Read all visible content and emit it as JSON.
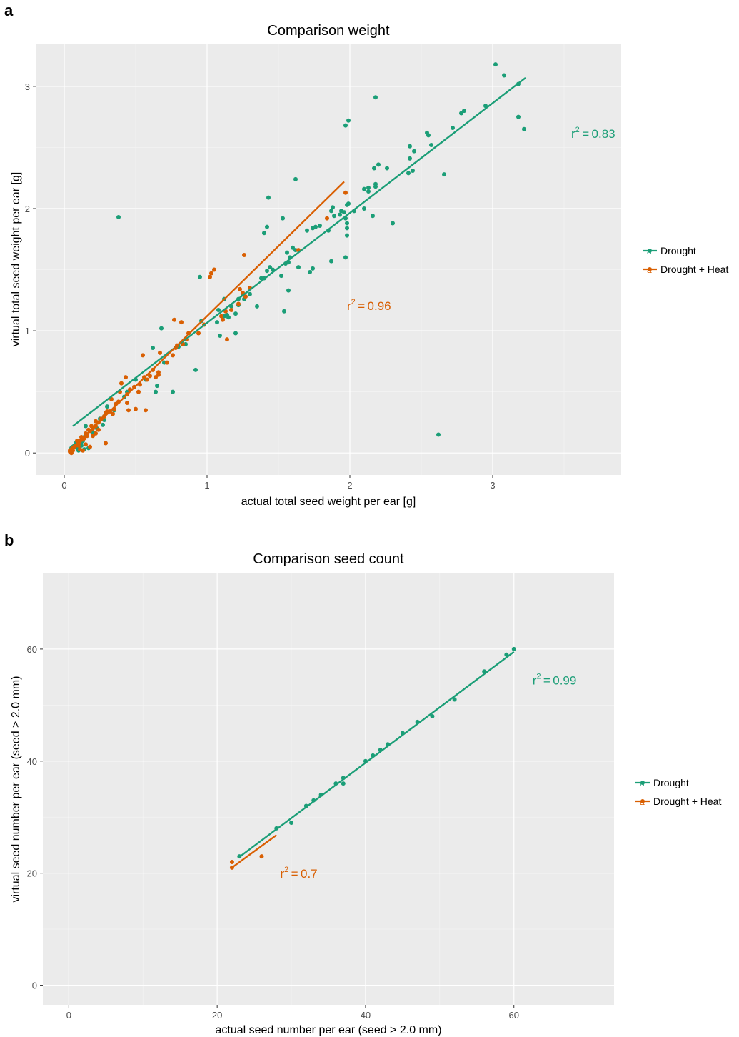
{
  "panels": [
    {
      "label": "a"
    },
    {
      "label": "b"
    }
  ],
  "chart_data": [
    {
      "type": "scatter",
      "title": "Comparison weight",
      "xlabel": "actual total seed weight per ear [g]",
      "ylabel": "virtual total seed weight per ear [g]",
      "xlim": [
        -0.2,
        3.9
      ],
      "ylim": [
        -0.18,
        3.35
      ],
      "x_ticks": [
        0,
        1,
        2,
        3
      ],
      "y_ticks": [
        0,
        1,
        2,
        3
      ],
      "x_tick_labels": [
        "0",
        "1",
        "2",
        "3"
      ],
      "y_tick_labels": [
        "0",
        "1",
        "2",
        "3"
      ],
      "grid": true,
      "legend_position": "right",
      "series": [
        {
          "name": "Drought",
          "color": "#1b9e77",
          "points": [
            [
              0.38,
              1.93
            ],
            [
              2.62,
              0.15
            ],
            [
              3.02,
              3.18
            ],
            [
              3.08,
              3.09
            ],
            [
              3.18,
              3.02
            ],
            [
              3.18,
              2.75
            ],
            [
              3.22,
              2.65
            ],
            [
              2.95,
              2.84
            ],
            [
              2.8,
              2.8
            ],
            [
              2.78,
              2.78
            ],
            [
              2.72,
              2.66
            ],
            [
              2.66,
              2.28
            ],
            [
              2.57,
              2.52
            ],
            [
              2.55,
              2.6
            ],
            [
              2.54,
              2.62
            ],
            [
              2.45,
              2.47
            ],
            [
              2.44,
              2.31
            ],
            [
              2.42,
              2.51
            ],
            [
              2.42,
              2.41
            ],
            [
              2.41,
              2.29
            ],
            [
              2.26,
              2.33
            ],
            [
              2.2,
              2.36
            ],
            [
              2.18,
              2.91
            ],
            [
              2.17,
              2.33
            ],
            [
              2.18,
              2.2
            ],
            [
              2.18,
              2.18
            ],
            [
              2.13,
              2.17
            ],
            [
              2.13,
              2.14
            ],
            [
              2.1,
              2.16
            ],
            [
              2.1,
              2.0
            ],
            [
              2.16,
              1.94
            ],
            [
              2.3,
              1.88
            ],
            [
              1.99,
              2.72
            ],
            [
              1.97,
              2.68
            ],
            [
              1.98,
              2.03
            ],
            [
              1.99,
              2.04
            ],
            [
              2.03,
              1.98
            ],
            [
              1.93,
              1.95
            ],
            [
              1.94,
              1.98
            ],
            [
              1.96,
              1.97
            ],
            [
              1.97,
              1.92
            ],
            [
              1.98,
              1.88
            ],
            [
              1.98,
              1.84
            ],
            [
              1.98,
              1.78
            ],
            [
              1.97,
              1.6
            ],
            [
              1.89,
              1.94
            ],
            [
              1.88,
              2.01
            ],
            [
              1.87,
              1.98
            ],
            [
              1.85,
              1.82
            ],
            [
              1.87,
              1.57
            ],
            [
              1.74,
              1.84
            ],
            [
              1.76,
              1.85
            ],
            [
              1.79,
              1.86
            ],
            [
              1.7,
              1.82
            ],
            [
              1.72,
              1.48
            ],
            [
              1.74,
              1.51
            ],
            [
              1.64,
              1.52
            ],
            [
              1.62,
              1.66
            ],
            [
              1.62,
              2.24
            ],
            [
              1.6,
              1.68
            ],
            [
              1.56,
              1.64
            ],
            [
              1.58,
              1.6
            ],
            [
              1.55,
              1.55
            ],
            [
              1.53,
              1.92
            ],
            [
              1.52,
              1.45
            ],
            [
              1.57,
              1.56
            ],
            [
              1.57,
              1.33
            ],
            [
              1.54,
              1.16
            ],
            [
              1.43,
              2.09
            ],
            [
              1.42,
              1.85
            ],
            [
              1.4,
              1.8
            ],
            [
              1.46,
              1.5
            ],
            [
              1.42,
              1.49
            ],
            [
              1.44,
              1.52
            ],
            [
              1.4,
              1.43
            ],
            [
              1.38,
              1.43
            ],
            [
              1.35,
              1.2
            ],
            [
              1.3,
              1.3
            ],
            [
              1.25,
              1.3
            ],
            [
              1.26,
              1.26
            ],
            [
              1.22,
              1.26
            ],
            [
              1.22,
              1.21
            ],
            [
              1.2,
              1.14
            ],
            [
              1.17,
              1.2
            ],
            [
              1.12,
              1.26
            ],
            [
              1.08,
              1.17
            ],
            [
              1.12,
              1.12
            ],
            [
              1.14,
              1.13
            ],
            [
              1.15,
              1.11
            ],
            [
              1.07,
              1.07
            ],
            [
              1.09,
              0.96
            ],
            [
              1.2,
              0.98
            ],
            [
              0.95,
              1.44
            ],
            [
              0.96,
              1.08
            ],
            [
              0.92,
              0.68
            ],
            [
              0.85,
              0.89
            ],
            [
              0.8,
              0.87
            ],
            [
              0.76,
              0.5
            ],
            [
              0.68,
              1.02
            ],
            [
              0.7,
              0.74
            ],
            [
              0.62,
              0.86
            ],
            [
              0.65,
              0.55
            ],
            [
              0.64,
              0.5
            ],
            [
              0.57,
              0.6
            ],
            [
              0.5,
              0.6
            ],
            [
              0.44,
              0.5
            ],
            [
              0.42,
              0.46
            ],
            [
              0.35,
              0.35
            ],
            [
              0.3,
              0.38
            ],
            [
              0.28,
              0.3
            ],
            [
              0.25,
              0.28
            ],
            [
              0.28,
              0.27
            ],
            [
              0.27,
              0.23
            ],
            [
              0.23,
              0.2
            ],
            [
              0.2,
              0.17
            ],
            [
              0.16,
              0.15
            ],
            [
              0.15,
              0.22
            ],
            [
              0.14,
              0.13
            ],
            [
              0.13,
              0.1
            ],
            [
              0.12,
              0.06
            ],
            [
              0.12,
              0.09
            ],
            [
              0.1,
              0.05
            ],
            [
              0.09,
              0.04
            ],
            [
              0.08,
              0.08
            ],
            [
              0.07,
              0.06
            ],
            [
              0.06,
              0.05
            ],
            [
              0.05,
              0.04
            ],
            [
              0.1,
              0.02
            ],
            [
              0.14,
              0.03
            ],
            [
              0.17,
              0.04
            ]
          ],
          "fit_line": [
            [
              0.06,
              0.22
            ],
            [
              3.23,
              3.07
            ]
          ],
          "annotation": "r² = 0.83",
          "annotation_pos": [
            3.55,
            2.58
          ]
        },
        {
          "name": "Drought + Heat",
          "color": "#d95f02",
          "points": [
            [
              1.97,
              2.13
            ],
            [
              1.84,
              1.92
            ],
            [
              1.64,
              1.66
            ],
            [
              1.26,
              1.62
            ],
            [
              1.05,
              1.5
            ],
            [
              1.03,
              1.47
            ],
            [
              1.02,
              1.44
            ],
            [
              1.3,
              1.35
            ],
            [
              1.23,
              1.34
            ],
            [
              1.25,
              1.31
            ],
            [
              1.27,
              1.28
            ],
            [
              1.22,
              1.22
            ],
            [
              1.17,
              1.17
            ],
            [
              1.13,
              1.16
            ],
            [
              1.1,
              1.12
            ],
            [
              1.11,
              1.09
            ],
            [
              1.14,
              0.93
            ],
            [
              0.98,
              1.05
            ],
            [
              0.94,
              0.98
            ],
            [
              0.87,
              0.98
            ],
            [
              0.86,
              0.93
            ],
            [
              0.83,
              0.89
            ],
            [
              0.79,
              0.88
            ],
            [
              0.78,
              0.86
            ],
            [
              0.77,
              1.09
            ],
            [
              0.82,
              1.07
            ],
            [
              0.67,
              0.82
            ],
            [
              0.64,
              0.62
            ],
            [
              0.66,
              0.64
            ],
            [
              0.62,
              0.68
            ],
            [
              0.58,
              0.6
            ],
            [
              0.55,
              0.8
            ],
            [
              0.56,
              0.62
            ],
            [
              0.53,
              0.56
            ],
            [
              0.52,
              0.5
            ],
            [
              0.49,
              0.54
            ],
            [
              0.46,
              0.52
            ],
            [
              0.44,
              0.48
            ],
            [
              0.43,
              0.62
            ],
            [
              0.4,
              0.57
            ],
            [
              0.39,
              0.5
            ],
            [
              0.38,
              0.42
            ],
            [
              0.36,
              0.4
            ],
            [
              0.35,
              0.36
            ],
            [
              0.34,
              0.32
            ],
            [
              0.33,
              0.44
            ],
            [
              0.32,
              0.34
            ],
            [
              0.3,
              0.34
            ],
            [
              0.29,
              0.33
            ],
            [
              0.28,
              0.3
            ],
            [
              0.26,
              0.28
            ],
            [
              0.24,
              0.25
            ],
            [
              0.22,
              0.26
            ],
            [
              0.22,
              0.22
            ],
            [
              0.2,
              0.2
            ],
            [
              0.19,
              0.22
            ],
            [
              0.18,
              0.18
            ],
            [
              0.17,
              0.19
            ],
            [
              0.16,
              0.14
            ],
            [
              0.15,
              0.16
            ],
            [
              0.14,
              0.12
            ],
            [
              0.13,
              0.11
            ],
            [
              0.12,
              0.13
            ],
            [
              0.11,
              0.1
            ],
            [
              0.1,
              0.08
            ],
            [
              0.09,
              0.1
            ],
            [
              0.08,
              0.06
            ],
            [
              0.07,
              0.05
            ],
            [
              0.06,
              0.04
            ],
            [
              0.05,
              0.03
            ],
            [
              0.04,
              0.02
            ],
            [
              0.04,
              0.01
            ],
            [
              0.05,
              0.0
            ],
            [
              0.06,
              0.02
            ],
            [
              0.13,
              0.02
            ],
            [
              0.1,
              0.06
            ],
            [
              0.29,
              0.08
            ],
            [
              0.22,
              0.16
            ],
            [
              0.2,
              0.14
            ],
            [
              0.24,
              0.19
            ],
            [
              0.57,
              0.35
            ],
            [
              0.44,
              0.41
            ],
            [
              0.45,
              0.35
            ],
            [
              0.5,
              0.36
            ],
            [
              0.66,
              0.66
            ],
            [
              0.76,
              0.8
            ],
            [
              0.72,
              0.74
            ],
            [
              0.6,
              0.63
            ],
            [
              0.18,
              0.05
            ],
            [
              0.15,
              0.07
            ],
            [
              0.11,
              0.03
            ]
          ],
          "fit_line": [
            [
              0.04,
              0.02
            ],
            [
              1.96,
              2.22
            ]
          ],
          "annotation": "r² = 0.96",
          "annotation_pos": [
            1.98,
            1.17
          ]
        }
      ]
    },
    {
      "type": "scatter",
      "title": "Comparison seed count",
      "xlabel": "actual seed number per ear (seed > 2.0 mm)",
      "ylabel": "virtual seed number per ear (seed > 2.0 mm)",
      "xlim": [
        -3.5,
        73.5
      ],
      "ylim": [
        -3.5,
        73.5
      ],
      "x_ticks": [
        0,
        20,
        40,
        60
      ],
      "y_ticks": [
        0,
        20,
        40,
        60
      ],
      "x_tick_labels": [
        "0",
        "20",
        "40",
        "60"
      ],
      "y_tick_labels": [
        "0",
        "20",
        "40",
        "60"
      ],
      "grid": true,
      "legend_position": "right",
      "series": [
        {
          "name": "Drought",
          "color": "#1b9e77",
          "points": [
            [
              23,
              23
            ],
            [
              28,
              28
            ],
            [
              30,
              29
            ],
            [
              32,
              32
            ],
            [
              33,
              33
            ],
            [
              34,
              34
            ],
            [
              36,
              36
            ],
            [
              37,
              37
            ],
            [
              37,
              36
            ],
            [
              40,
              40
            ],
            [
              41,
              41
            ],
            [
              42,
              42
            ],
            [
              43,
              43
            ],
            [
              45,
              45
            ],
            [
              47,
              47
            ],
            [
              49,
              48
            ],
            [
              52,
              51
            ],
            [
              56,
              56
            ],
            [
              59,
              59
            ],
            [
              60,
              60
            ]
          ],
          "fit_line": [
            [
              23,
              22.9
            ],
            [
              60,
              59.5
            ]
          ],
          "annotation": "r² = 0.99",
          "annotation_pos": [
            62.5,
            53.7
          ]
        },
        {
          "name": "Drought + Heat",
          "color": "#d95f02",
          "points": [
            [
              22,
              22
            ],
            [
              22,
              21
            ],
            [
              26,
              23
            ]
          ],
          "fit_line": [
            [
              22,
              21
            ],
            [
              28,
              26.8
            ]
          ],
          "annotation": "r² = 0.7",
          "annotation_pos": [
            28.5,
            19.2
          ]
        }
      ]
    }
  ]
}
